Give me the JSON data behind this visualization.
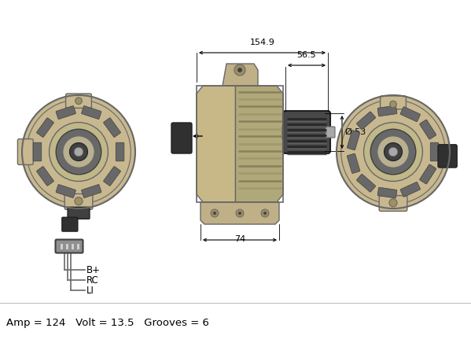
{
  "background_color": "#ffffff",
  "fig_width": 5.99,
  "fig_height": 4.36,
  "dpi": 100,
  "bottom_text": "Amp = 124   Volt = 13.5   Grooves = 6",
  "dim_154_9": "154.9",
  "dim_56_5": "56.5",
  "dim_74": "74",
  "dim_53": "Ø 53",
  "connector_labels": [
    "B+",
    "RC",
    "LI"
  ],
  "line_color": "#000000",
  "gray_light": "#d4d4d4",
  "gray_mid": "#a8a8a8",
  "gray_dark": "#686868",
  "gray_vdark": "#404040",
  "tan": "#c8b890",
  "tan_dark": "#a09060"
}
